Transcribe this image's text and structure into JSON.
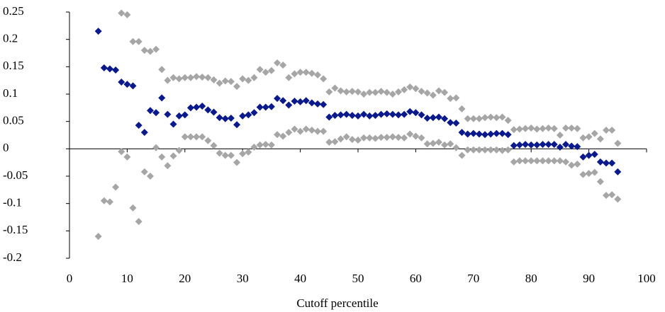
{
  "chart_data": {
    "type": "scatter",
    "x_label": "Cutoff percentile",
    "xlim": [
      0,
      100
    ],
    "xticks": [
      0,
      10,
      20,
      30,
      40,
      50,
      60,
      70,
      80,
      90,
      100
    ],
    "ylim": [
      -0.2,
      0.25
    ],
    "yticks": [
      -0.2,
      -0.15,
      -0.1,
      -0.05,
      0,
      0.05,
      0.1,
      0.15,
      0.2,
      0.25
    ],
    "x": [
      5,
      6,
      7,
      8,
      9,
      10,
      11,
      12,
      13,
      14,
      15,
      16,
      17,
      18,
      19,
      20,
      21,
      22,
      23,
      24,
      25,
      26,
      27,
      28,
      29,
      30,
      31,
      32,
      33,
      34,
      35,
      36,
      37,
      38,
      39,
      40,
      41,
      42,
      43,
      44,
      45,
      46,
      47,
      48,
      49,
      50,
      51,
      52,
      53,
      54,
      55,
      56,
      57,
      58,
      59,
      60,
      61,
      62,
      63,
      64,
      65,
      66,
      67,
      68,
      69,
      70,
      71,
      72,
      73,
      74,
      75,
      76,
      77,
      78,
      79,
      80,
      81,
      82,
      83,
      84,
      85,
      86,
      87,
      88,
      89,
      90,
      91,
      92,
      93,
      94,
      95
    ],
    "series": [
      {
        "color": "#a6a6a6",
        "values": [
          null,
          null,
          null,
          null,
          0.248,
          0.245,
          0.196,
          0.196,
          0.18,
          0.178,
          0.182,
          0.145,
          0.125,
          0.13,
          0.128,
          0.13,
          0.13,
          0.132,
          0.131,
          0.13,
          0.126,
          0.12,
          0.124,
          0.123,
          0.114,
          0.128,
          0.125,
          0.13,
          0.145,
          0.14,
          0.143,
          0.157,
          0.153,
          0.13,
          0.137,
          0.14,
          0.14,
          0.138,
          0.135,
          0.128,
          0.104,
          0.111,
          0.106,
          0.104,
          0.105,
          0.104,
          0.1,
          0.103,
          0.103,
          0.105,
          0.103,
          0.1,
          0.104,
          0.108,
          0.113,
          0.11,
          0.105,
          0.102,
          0.098,
          0.106,
          0.103,
          0.092,
          0.093,
          0.073,
          0.055,
          0.055,
          0.055,
          0.057,
          0.058,
          0.057,
          0.058,
          0.052,
          0.035,
          0.036,
          0.037,
          0.038,
          0.036,
          0.037,
          0.038,
          0.037,
          0.025,
          0.038,
          0.038,
          0.037,
          0.02,
          0.022,
          0.028,
          0.018,
          0.034,
          0.034,
          0.01
        ]
      },
      {
        "color": "#a6a6a6",
        "values": [
          -0.16,
          -0.095,
          -0.097,
          -0.07,
          -0.005,
          -0.015,
          -0.108,
          -0.133,
          -0.042,
          -0.05,
          0.002,
          -0.015,
          -0.031,
          -0.013,
          -0.003,
          0.022,
          0.022,
          0.022,
          0.022,
          0.015,
          0.006,
          -0.008,
          -0.012,
          -0.012,
          -0.025,
          -0.009,
          -0.006,
          0.003,
          0.007,
          0.008,
          0.007,
          0.026,
          0.023,
          0.03,
          0.036,
          0.032,
          0.036,
          0.034,
          0.032,
          0.032,
          0.012,
          0.013,
          0.018,
          0.022,
          0.017,
          0.016,
          0.02,
          0.02,
          0.019,
          0.021,
          0.021,
          0.022,
          0.021,
          0.02,
          0.027,
          0.023,
          0.02,
          0.009,
          0.01,
          0.012,
          0.007,
          0.009,
          0.002,
          -0.012,
          -0.002,
          -0.002,
          -0.002,
          -0.002,
          -0.002,
          -0.002,
          -0.003,
          -0.002,
          -0.024,
          -0.022,
          -0.022,
          -0.022,
          -0.022,
          -0.022,
          -0.022,
          -0.022,
          -0.022,
          -0.024,
          -0.03,
          -0.028,
          -0.047,
          -0.045,
          -0.043,
          -0.06,
          -0.085,
          -0.084,
          -0.092
        ]
      },
      {
        "color": "#0a1a8c",
        "values": [
          0.215,
          0.148,
          0.146,
          0.144,
          0.122,
          0.118,
          0.115,
          0.043,
          0.03,
          0.07,
          0.066,
          0.093,
          0.063,
          0.045,
          0.06,
          0.062,
          0.075,
          0.076,
          0.078,
          0.071,
          0.067,
          0.057,
          0.055,
          0.056,
          0.044,
          0.06,
          0.062,
          0.066,
          0.076,
          0.076,
          0.077,
          0.092,
          0.088,
          0.08,
          0.087,
          0.086,
          0.088,
          0.084,
          0.082,
          0.081,
          0.058,
          0.061,
          0.062,
          0.063,
          0.061,
          0.06,
          0.063,
          0.06,
          0.061,
          0.063,
          0.064,
          0.063,
          0.062,
          0.063,
          0.068,
          0.066,
          0.062,
          0.056,
          0.057,
          0.058,
          0.055,
          0.048,
          0.047,
          0.03,
          0.027,
          0.028,
          0.027,
          0.026,
          0.027,
          0.028,
          0.028,
          0.026,
          0.006,
          0.007,
          0.008,
          0.007,
          0.007,
          0.008,
          0.008,
          0.008,
          0.003,
          0.008,
          0.005,
          0.004,
          -0.015,
          -0.012,
          -0.01,
          -0.024,
          -0.026,
          -0.026,
          -0.042
        ]
      }
    ]
  }
}
